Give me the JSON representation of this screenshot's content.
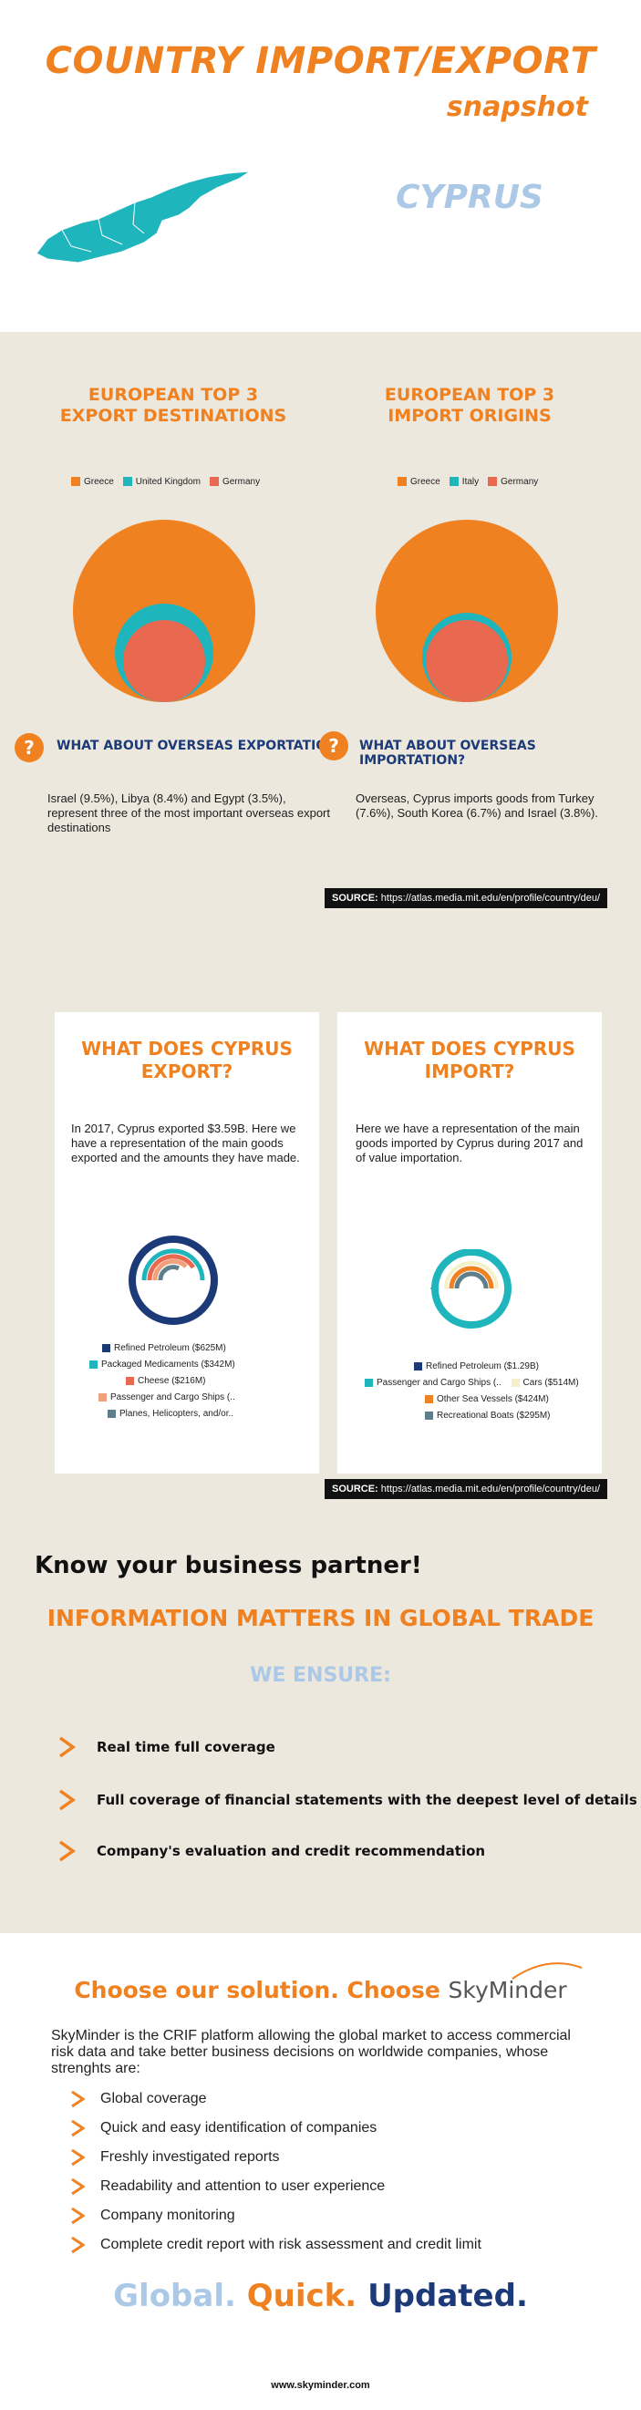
{
  "header": {
    "title_line1": "COUNTRY IMPORT/EXPORT",
    "title_line2": "snapshot",
    "country": "CYPRUS"
  },
  "colors": {
    "orange": "#f08120",
    "teal": "#1fb5bd",
    "salmon": "#e8694f",
    "navy": "#1c3a78",
    "light_blue": "#abc8e6",
    "beige": "#ece8de"
  },
  "export_destinations": {
    "heading_line1": "EUROPEAN TOP 3",
    "heading_line2": "EXPORT DESTINATIONS",
    "legend": [
      {
        "label": "Greece",
        "color": "#f08120"
      },
      {
        "label": "United Kingdom",
        "color": "#1fb5bd"
      },
      {
        "label": "Germany",
        "color": "#e8694f"
      }
    ],
    "question": "WHAT ABOUT OVERSEAS EXPORTATION?",
    "text": "Israel (9.5%), Libya (8.4%) and Egypt (3.5%), represent three of the most important overseas export destinations"
  },
  "import_origins": {
    "heading_line1": "EUROPEAN TOP 3",
    "heading_line2": "IMPORT ORIGINS",
    "legend": [
      {
        "label": "Greece",
        "color": "#f08120"
      },
      {
        "label": "Italy",
        "color": "#1fb5bd"
      },
      {
        "label": "Germany",
        "color": "#e8694f"
      }
    ],
    "question": "WHAT ABOUT OVERSEAS IMPORTATION?",
    "text": "Overseas, Cyprus imports goods from Turkey (7.6%), South Korea (6.7%) and Israel (3.8%)."
  },
  "source": {
    "label": "SOURCE:",
    "url": "https://atlas.media.mit.edu/en/profile/country/deu/"
  },
  "export_card": {
    "title_line1": "WHAT DOES CYPRUS",
    "title_line2": "EXPORT?",
    "text": "In 2017, Cyprus exported $3.59B.  Here we have a representation of the main goods exported and the amounts they have made.",
    "legend": [
      {
        "label": "Refined Petroleum ($625M)",
        "color": "#1c3a78"
      },
      {
        "label": "Packaged Medicaments ($342M)",
        "color": "#1fb5bd"
      },
      {
        "label": "Cheese ($216M)",
        "color": "#e8694f"
      },
      {
        "label": "Passenger and Cargo Ships (..",
        "color": "#f0a07a"
      },
      {
        "label": "Planes, Helicopters, and/or..",
        "color": "#5e7f8a"
      }
    ]
  },
  "import_card": {
    "title_line1": "WHAT DOES CYPRUS",
    "title_line2": "IMPORT?",
    "text": "Here we have a representation of the main goods imported by Cyprus during 2017 and of value importation.",
    "legend": [
      {
        "label": "Refined Petroleum ($1.29B)",
        "color": "#1c3a78"
      },
      {
        "label": "Passenger and Cargo Ships (..",
        "color": "#1fb5bd"
      },
      {
        "label": "Cars ($514M)",
        "color": "#f4f0c8"
      },
      {
        "label": "Other Sea Vessels ($424M)",
        "color": "#f08120"
      },
      {
        "label": "Recreational Boats ($295M)",
        "color": "#5e7f8a"
      }
    ]
  },
  "partner": {
    "know": "Know your business partner!",
    "info": "INFORMATION MATTERS IN GLOBAL TRADE",
    "ensure": "WE ENSURE:",
    "items": [
      "Real time full coverage",
      "Full coverage of financial statements with the deepest level of details",
      "Company's evaluation and credit recommendation"
    ]
  },
  "solution": {
    "choose": "Choose our solution. Choose",
    "brand": "SkyMinder",
    "description": "SkyMinder is the CRIF platform allowing the global market to access commercial risk data and take better business decisions on worldwide companies, whose strenghts are:",
    "features": [
      "Global coverage",
      "Quick and easy identification of companies",
      "Freshly investigated reports",
      "Readability and attention to user experience",
      "Company monitoring",
      "Complete credit report with risk assessment and credit limit"
    ],
    "slogan_1": "Global.",
    "slogan_2": "Quick.",
    "slogan_3": "Updated.",
    "footer": "www.skyminder.com"
  }
}
